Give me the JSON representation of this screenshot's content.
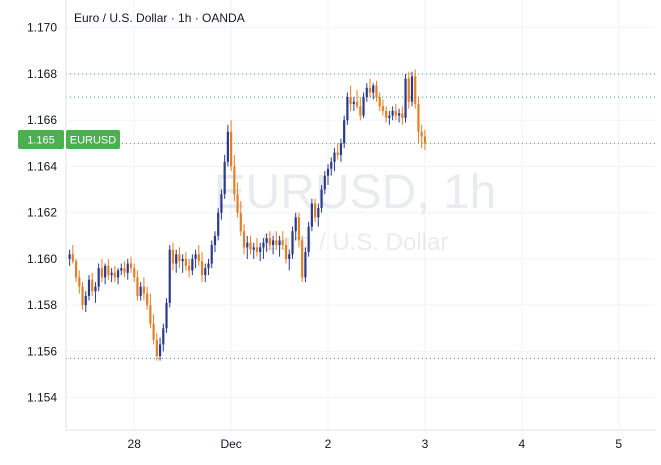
{
  "header": {
    "title": "Euro / U.S. Dollar · 1h · OANDA"
  },
  "watermark": {
    "symbol": "EURUSD, 1h",
    "description": "Euro / U.S. Dollar"
  },
  "price_axis": {
    "current_price_label": "1.165",
    "symbol_badge": "EURUSD"
  },
  "colors": {
    "up": "#2a3b8f",
    "down": "#e67e22",
    "badge": "#4caf50",
    "grid": "#f0f3fa",
    "dotted_line": "#2e9e77"
  },
  "chart_data": {
    "type": "candlestick",
    "title": "Euro / U.S. Dollar · 1h · OANDA",
    "xlabel": "",
    "ylabel": "",
    "ylim": [
      1.1526,
      1.1712
    ],
    "y_ticks": [
      "1.170",
      "1.168",
      "1.166",
      "1.165",
      "1.164",
      "1.162",
      "1.160",
      "1.158",
      "1.156",
      "1.154"
    ],
    "x_ticks": [
      "28",
      "Dec",
      "2",
      "3",
      "4",
      "5"
    ],
    "x_tick_index": [
      20,
      50,
      80,
      110,
      140,
      170
    ],
    "reference_levels": [
      1.168,
      1.167,
      1.1557
    ],
    "current_price": 1.165,
    "candles": [
      [
        1.16,
        1.1604,
        1.1597,
        1.1602
      ],
      [
        1.1602,
        1.1606,
        1.1598,
        1.1599
      ],
      [
        1.1599,
        1.16,
        1.159,
        1.1592
      ],
      [
        1.1592,
        1.1595,
        1.1585,
        1.1588
      ],
      [
        1.1588,
        1.159,
        1.1578,
        1.158
      ],
      [
        1.158,
        1.1586,
        1.1577,
        1.1584
      ],
      [
        1.1584,
        1.1593,
        1.1582,
        1.1591
      ],
      [
        1.1591,
        1.1594,
        1.1584,
        1.1586
      ],
      [
        1.1586,
        1.159,
        1.1581,
        1.1588
      ],
      [
        1.1588,
        1.1598,
        1.1586,
        1.1596
      ],
      [
        1.1596,
        1.16,
        1.159,
        1.1592
      ],
      [
        1.1592,
        1.1598,
        1.1589,
        1.1597
      ],
      [
        1.1597,
        1.16,
        1.1591,
        1.1593
      ],
      [
        1.1593,
        1.1596,
        1.159,
        1.1594
      ],
      [
        1.1594,
        1.1597,
        1.159,
        1.1592
      ],
      [
        1.1592,
        1.1596,
        1.1589,
        1.1595
      ],
      [
        1.1595,
        1.1598,
        1.1593,
        1.1596
      ],
      [
        1.1596,
        1.1599,
        1.1592,
        1.1594
      ],
      [
        1.1594,
        1.16,
        1.1591,
        1.1598
      ],
      [
        1.1598,
        1.1601,
        1.1594,
        1.1596
      ],
      [
        1.1596,
        1.1598,
        1.159,
        1.1592
      ],
      [
        1.1592,
        1.1595,
        1.1582,
        1.1584
      ],
      [
        1.1584,
        1.159,
        1.1582,
        1.1588
      ],
      [
        1.1588,
        1.1592,
        1.1582,
        1.1585
      ],
      [
        1.1585,
        1.1588,
        1.1578,
        1.158
      ],
      [
        1.158,
        1.1585,
        1.157,
        1.1572
      ],
      [
        1.1572,
        1.1576,
        1.1563,
        1.1565
      ],
      [
        1.1565,
        1.1568,
        1.1556,
        1.1558
      ],
      [
        1.1558,
        1.1566,
        1.1556,
        1.1563
      ],
      [
        1.1563,
        1.1572,
        1.156,
        1.157
      ],
      [
        1.157,
        1.1583,
        1.1568,
        1.1581
      ],
      [
        1.1581,
        1.1606,
        1.1579,
        1.1604
      ],
      [
        1.1604,
        1.1607,
        1.1595,
        1.1598
      ],
      [
        1.1598,
        1.1604,
        1.1594,
        1.1602
      ],
      [
        1.1602,
        1.1605,
        1.1596,
        1.1599
      ],
      [
        1.1599,
        1.1602,
        1.1594,
        1.16
      ],
      [
        1.16,
        1.1603,
        1.1595,
        1.1597
      ],
      [
        1.1597,
        1.16,
        1.1592,
        1.1595
      ],
      [
        1.1595,
        1.1602,
        1.1593,
        1.16
      ],
      [
        1.16,
        1.1604,
        1.1596,
        1.1602
      ],
      [
        1.1602,
        1.1606,
        1.1597,
        1.1599
      ],
      [
        1.1599,
        1.1603,
        1.159,
        1.1593
      ],
      [
        1.1593,
        1.1598,
        1.159,
        1.1596
      ],
      [
        1.1596,
        1.16,
        1.1593,
        1.1598
      ],
      [
        1.1598,
        1.1608,
        1.1596,
        1.1606
      ],
      [
        1.1606,
        1.1612,
        1.1603,
        1.161
      ],
      [
        1.161,
        1.1622,
        1.1608,
        1.162
      ],
      [
        1.162,
        1.163,
        1.1617,
        1.1628
      ],
      [
        1.1628,
        1.1645,
        1.1626,
        1.1642
      ],
      [
        1.1642,
        1.1658,
        1.164,
        1.1655
      ],
      [
        1.1655,
        1.166,
        1.1638,
        1.164
      ],
      [
        1.164,
        1.1645,
        1.1625,
        1.1628
      ],
      [
        1.1628,
        1.1633,
        1.1618,
        1.162
      ],
      [
        1.162,
        1.1625,
        1.161,
        1.1612
      ],
      [
        1.1612,
        1.1615,
        1.1602,
        1.1605
      ],
      [
        1.1605,
        1.161,
        1.16,
        1.1607
      ],
      [
        1.1607,
        1.161,
        1.1602,
        1.1604
      ],
      [
        1.1604,
        1.1607,
        1.16,
        1.1605
      ],
      [
        1.1605,
        1.1609,
        1.1601,
        1.1603
      ],
      [
        1.1603,
        1.1607,
        1.1599,
        1.1605
      ],
      [
        1.1605,
        1.1609,
        1.16,
        1.1607
      ],
      [
        1.1607,
        1.1611,
        1.1603,
        1.1609
      ],
      [
        1.1609,
        1.1612,
        1.1604,
        1.1606
      ],
      [
        1.1606,
        1.161,
        1.1602,
        1.1608
      ],
      [
        1.1608,
        1.1612,
        1.1604,
        1.1606
      ],
      [
        1.1606,
        1.161,
        1.1601,
        1.1608
      ],
      [
        1.1608,
        1.1612,
        1.1604,
        1.1606
      ],
      [
        1.1606,
        1.1609,
        1.1598,
        1.16
      ],
      [
        1.16,
        1.1604,
        1.1595,
        1.1602
      ],
      [
        1.1602,
        1.1614,
        1.16,
        1.1612
      ],
      [
        1.1612,
        1.162,
        1.1608,
        1.1618
      ],
      [
        1.1618,
        1.162,
        1.1605,
        1.1608
      ],
      [
        1.1608,
        1.161,
        1.159,
        1.1592
      ],
      [
        1.1592,
        1.1605,
        1.159,
        1.1603
      ],
      [
        1.1603,
        1.1616,
        1.1601,
        1.1614
      ],
      [
        1.1614,
        1.1626,
        1.1612,
        1.1624
      ],
      [
        1.1624,
        1.1626,
        1.1616,
        1.1618
      ],
      [
        1.1618,
        1.1624,
        1.1614,
        1.1622
      ],
      [
        1.1622,
        1.1632,
        1.162,
        1.163
      ],
      [
        1.163,
        1.1638,
        1.1628,
        1.1636
      ],
      [
        1.1636,
        1.1641,
        1.1632,
        1.1639
      ],
      [
        1.1639,
        1.1644,
        1.1636,
        1.1642
      ],
      [
        1.1642,
        1.1648,
        1.1638,
        1.1646
      ],
      [
        1.1646,
        1.165,
        1.1643,
        1.1645
      ],
      [
        1.1645,
        1.1652,
        1.1642,
        1.165
      ],
      [
        1.165,
        1.1662,
        1.1648,
        1.166
      ],
      [
        1.166,
        1.1672,
        1.1658,
        1.167
      ],
      [
        1.167,
        1.1675,
        1.1664,
        1.1667
      ],
      [
        1.1667,
        1.167,
        1.1664,
        1.1668
      ],
      [
        1.1668,
        1.1673,
        1.1665,
        1.1666
      ],
      [
        1.1666,
        1.167,
        1.166,
        1.1662
      ],
      [
        1.1662,
        1.1672,
        1.1661,
        1.167
      ],
      [
        1.167,
        1.1676,
        1.1668,
        1.1674
      ],
      [
        1.1674,
        1.1678,
        1.167,
        1.1672
      ],
      [
        1.1672,
        1.1676,
        1.1669,
        1.1675
      ],
      [
        1.1675,
        1.1677,
        1.1668,
        1.167
      ],
      [
        1.167,
        1.1672,
        1.1664,
        1.1666
      ],
      [
        1.1666,
        1.1669,
        1.1662,
        1.1664
      ],
      [
        1.1664,
        1.1666,
        1.1659,
        1.1661
      ],
      [
        1.1661,
        1.1664,
        1.1658,
        1.1662
      ],
      [
        1.1662,
        1.1666,
        1.166,
        1.1664
      ],
      [
        1.1664,
        1.1667,
        1.166,
        1.1662
      ],
      [
        1.1662,
        1.1665,
        1.1659,
        1.1663
      ],
      [
        1.1663,
        1.1666,
        1.1658,
        1.1661
      ],
      [
        1.1661,
        1.168,
        1.1659,
        1.1678
      ],
      [
        1.1678,
        1.1681,
        1.1665,
        1.1668
      ],
      [
        1.1668,
        1.1681,
        1.1666,
        1.1679
      ],
      [
        1.1679,
        1.1682,
        1.1665,
        1.1667
      ],
      [
        1.1667,
        1.167,
        1.165,
        1.1655
      ],
      [
        1.1655,
        1.1658,
        1.1648,
        1.1653
      ],
      [
        1.1653,
        1.1656,
        1.1647,
        1.165
      ]
    ]
  }
}
